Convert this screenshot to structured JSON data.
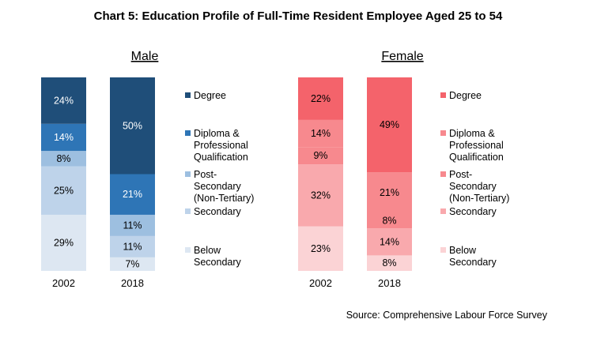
{
  "title": "Chart 5: Education Profile of Full-Time Resident Employee Aged 25 to 54",
  "source": "Source: Comprehensive Labour Force Survey",
  "chart_data": [
    {
      "type": "bar",
      "stacked": true,
      "normalized": true,
      "title": "Male",
      "categories": [
        "2002",
        "2018"
      ],
      "series": [
        {
          "name": "Below Secondary",
          "values": [
            29,
            7
          ],
          "color": "#dde7f2",
          "label_color": "#000000"
        },
        {
          "name": "Secondary",
          "values": [
            25,
            11
          ],
          "color": "#bed3ea",
          "label_color": "#000000"
        },
        {
          "name": "Post-Secondary (Non-Tertiary)",
          "values": [
            8,
            11
          ],
          "color": "#9dbfe0",
          "label_color": "#000000"
        },
        {
          "name": "Diploma & Professional Qualification",
          "values": [
            14,
            21
          ],
          "color": "#2e75b6",
          "label_color": "#ffffff"
        },
        {
          "name": "Degree",
          "values": [
            24,
            50
          ],
          "color": "#1f4e79",
          "label_color": "#ffffff"
        }
      ],
      "legend": [
        {
          "lines": [
            "Degree"
          ],
          "color": "#1f4e79"
        },
        {
          "lines": [
            "Diploma &",
            "Professional",
            "Qualification"
          ],
          "color": "#2e75b6"
        },
        {
          "lines": [
            "Post-",
            "Secondary",
            "(Non-Tertiary)"
          ],
          "color": "#9dbfe0"
        },
        {
          "lines": [
            "Secondary"
          ],
          "color": "#bed3ea"
        },
        {
          "lines": [
            "Below",
            "Secondary"
          ],
          "color": "#dde7f2"
        }
      ],
      "legend_position": "right"
    },
    {
      "type": "bar",
      "stacked": true,
      "normalized": true,
      "title": "Female",
      "categories": [
        "2002",
        "2018"
      ],
      "series": [
        {
          "name": "Below Secondary",
          "values": [
            23,
            8
          ],
          "color": "#fbd3d5",
          "label_color": "#000000"
        },
        {
          "name": "Secondary",
          "values": [
            32,
            14
          ],
          "color": "#f9a9ad",
          "label_color": "#000000"
        },
        {
          "name": "Post-Secondary (Non-Tertiary)",
          "values": [
            9,
            8
          ],
          "color": "#f7898e",
          "label_color": "#000000"
        },
        {
          "name": "Diploma & Professional Qualification",
          "values": [
            14,
            21
          ],
          "color": "#f7898e",
          "label_color": "#000000"
        },
        {
          "name": "Degree",
          "values": [
            22,
            49
          ],
          "color": "#f4636b",
          "label_color": "#000000"
        }
      ],
      "legend": [
        {
          "lines": [
            "Degree"
          ],
          "color": "#f4636b"
        },
        {
          "lines": [
            "Diploma &",
            "Professional",
            "Qualification"
          ],
          "color": "#f7898e"
        },
        {
          "lines": [
            "Post-",
            "Secondary",
            "(Non-Tertiary)"
          ],
          "color": "#f7898e"
        },
        {
          "lines": [
            "Secondary"
          ],
          "color": "#f9a9ad"
        },
        {
          "lines": [
            "Below",
            "Secondary"
          ],
          "color": "#fbd3d5"
        }
      ],
      "legend_position": "right"
    }
  ]
}
